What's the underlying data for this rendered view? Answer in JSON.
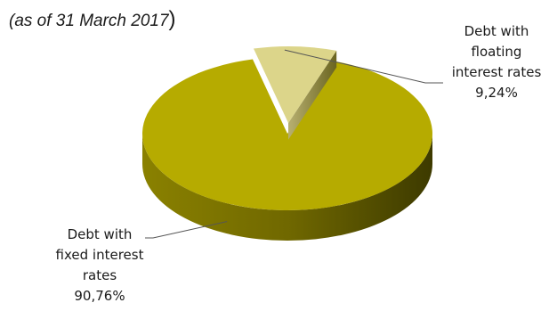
{
  "chart_data": {
    "type": "pie",
    "subtitle": "(as of 31 March 2017",
    "subtitle_close": ")",
    "slices": [
      {
        "label_lines": [
          "Debt with",
          "floating",
          "interest rates"
        ],
        "value_label": "9,24%",
        "value": 9.24,
        "color": "#dcd58a",
        "exploded": true
      },
      {
        "label_lines": [
          "Debt with",
          "fixed interest",
          "rates"
        ],
        "value_label": "90,76%",
        "value": 90.76,
        "color": "#b6ab00"
      }
    ]
  }
}
